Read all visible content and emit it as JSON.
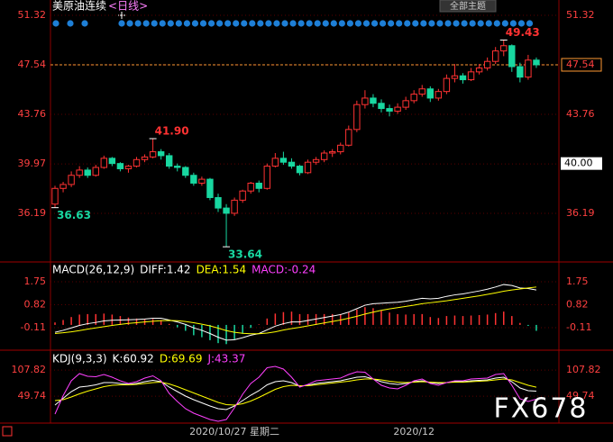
{
  "toolbar": {
    "button": "全部主题"
  },
  "watermark": "FX678",
  "chart_data": [
    {
      "type": "candlestick",
      "title": "美原油连续",
      "subtitle": "<日线>",
      "title_color": "#ffffff",
      "subtitle_color": "#ff80ff",
      "up_color": "#ff3232",
      "down_color": "#18d7a0",
      "grid": true,
      "ylim": [
        32.55,
        51.94
      ],
      "yticks": [
        36.19,
        39.97,
        43.76,
        47.54,
        51.32
      ],
      "categories": [
        null,
        null,
        null,
        null,
        null,
        null,
        null,
        null,
        null,
        null,
        null,
        null,
        null,
        null,
        null,
        null,
        null,
        null,
        null,
        null,
        null,
        null,
        "2020/10/27 星期二",
        null,
        null,
        null,
        null,
        null,
        null,
        null,
        null,
        null,
        null,
        null,
        null,
        null,
        null,
        null,
        null,
        null,
        null,
        null,
        null,
        null,
        "2020/12",
        null,
        null,
        null,
        null,
        null,
        null,
        null,
        null,
        null,
        null,
        null,
        null,
        null,
        null,
        null
      ],
      "open": [
        36.9,
        38.1,
        38.4,
        39.1,
        39.5,
        39.1,
        39.7,
        40.4,
        40.0,
        39.6,
        39.8,
        40.3,
        40.5,
        40.9,
        40.6,
        39.8,
        39.7,
        39.1,
        38.5,
        38.8,
        37.4,
        36.6,
        36.2,
        37.2,
        37.9,
        38.5,
        38.1,
        39.8,
        40.4,
        40.1,
        39.8,
        39.3,
        40.1,
        40.3,
        40.8,
        40.9,
        41.4,
        42.6,
        44.5,
        45.0,
        44.6,
        44.2,
        44.0,
        44.3,
        44.8,
        45.3,
        45.7,
        45.0,
        45.5,
        46.5,
        46.7,
        46.4,
        47.0,
        47.3,
        47.8,
        48.6,
        49.0,
        47.4,
        46.6,
        47.9
      ],
      "high": [
        38.3,
        38.6,
        39.4,
        39.8,
        39.7,
        39.9,
        40.6,
        40.5,
        40.1,
        39.9,
        40.5,
        40.7,
        41.9,
        41.1,
        40.8,
        40.0,
        39.8,
        39.3,
        39.0,
        38.9,
        37.7,
        36.9,
        37.4,
        38.0,
        38.6,
        38.7,
        40.0,
        40.8,
        40.9,
        40.4,
        39.9,
        40.3,
        40.5,
        41.0,
        41.1,
        41.6,
        42.9,
        44.8,
        45.6,
        45.3,
        44.9,
        44.5,
        44.6,
        45.1,
        45.6,
        46.0,
        45.9,
        45.7,
        46.8,
        47.6,
        46.9,
        47.3,
        47.6,
        48.1,
        48.9,
        49.43,
        49.1,
        47.7,
        48.3,
        48.1
      ],
      "low": [
        36.63,
        37.8,
        38.2,
        38.9,
        38.9,
        39.0,
        39.6,
        39.8,
        39.4,
        39.3,
        39.7,
        40.1,
        40.4,
        40.3,
        39.6,
        39.4,
        38.9,
        38.3,
        38.3,
        37.2,
        36.3,
        33.64,
        36.0,
        37.0,
        37.7,
        37.8,
        38.0,
        39.7,
        39.9,
        39.6,
        39.1,
        39.2,
        39.9,
        40.1,
        40.5,
        40.7,
        41.3,
        42.4,
        44.2,
        44.3,
        43.9,
        43.6,
        43.8,
        44.1,
        44.6,
        45.1,
        44.7,
        44.8,
        45.3,
        46.2,
        46.1,
        46.3,
        46.8,
        47.1,
        47.6,
        48.2,
        47.0,
        46.2,
        46.4,
        47.3
      ],
      "close": [
        38.1,
        38.4,
        39.1,
        39.5,
        39.1,
        39.7,
        40.4,
        40.0,
        39.6,
        39.8,
        40.3,
        40.5,
        40.9,
        40.6,
        39.8,
        39.7,
        39.1,
        38.5,
        38.8,
        37.4,
        36.6,
        36.2,
        37.2,
        37.9,
        38.5,
        38.1,
        39.8,
        40.4,
        40.1,
        39.8,
        39.3,
        40.1,
        40.3,
        40.8,
        40.9,
        41.4,
        42.6,
        44.5,
        45.0,
        44.6,
        44.2,
        44.0,
        44.3,
        44.8,
        45.3,
        45.7,
        45.0,
        45.5,
        46.5,
        46.7,
        46.4,
        47.0,
        47.3,
        47.8,
        48.6,
        49.0,
        47.4,
        46.6,
        47.9,
        47.54
      ],
      "annotations": [
        {
          "value": 41.9,
          "label": "41.90"
        },
        {
          "value": 49.43,
          "label": "49.43"
        },
        {
          "value": 36.63,
          "label": "36.63"
        },
        {
          "value": 33.64,
          "label": "33.64"
        }
      ],
      "last_price_color": "#ff9933",
      "cursor": {
        "value": 40,
        "label": "40.00"
      }
    },
    {
      "type": "macd",
      "header": [
        {
          "text": "MACD(26,12,9)",
          "color": "#ffffff"
        },
        {
          "text": "DIFF:1.42",
          "color": "#ffffff"
        },
        {
          "text": "DEA:1.54",
          "color": "#ffff00"
        },
        {
          "text": "MACD:-0.24",
          "color": "#ff40ff"
        }
      ],
      "ylim": [
        -0.88,
        2.52
      ],
      "yticks": [
        -0.11,
        0.82,
        1.75
      ],
      "histogram": {
        "up_color": "#ff3232",
        "down_color": "#18d7a0",
        "values": [
          0.1,
          0.2,
          0.32,
          0.42,
          0.44,
          0.44,
          0.46,
          0.42,
          0.36,
          0.3,
          0.26,
          0.24,
          0.24,
          0.2,
          0.04,
          -0.1,
          -0.24,
          -0.42,
          -0.5,
          -0.62,
          -0.74,
          -0.78,
          -0.6,
          -0.36,
          -0.12,
          0.02,
          0.26,
          0.46,
          0.52,
          0.54,
          0.44,
          0.44,
          0.44,
          0.44,
          0.44,
          0.44,
          0.5,
          0.62,
          0.72,
          0.68,
          0.58,
          0.5,
          0.44,
          0.42,
          0.44,
          0.44,
          0.32,
          0.28,
          0.36,
          0.38,
          0.36,
          0.38,
          0.4,
          0.42,
          0.48,
          0.54,
          0.36,
          0.08,
          -0.04,
          -0.24
        ]
      },
      "series": [
        {
          "color": "#ffffff",
          "values": [
            -0.3,
            -0.22,
            -0.12,
            -0.02,
            0.05,
            0.1,
            0.16,
            0.19,
            0.2,
            0.21,
            0.22,
            0.24,
            0.27,
            0.27,
            0.2,
            0.12,
            0.02,
            -0.12,
            -0.22,
            -0.35,
            -0.5,
            -0.62,
            -0.6,
            -0.52,
            -0.42,
            -0.35,
            -0.2,
            -0.05,
            0.05,
            0.12,
            0.12,
            0.18,
            0.24,
            0.3,
            0.36,
            0.42,
            0.52,
            0.66,
            0.8,
            0.86,
            0.88,
            0.9,
            0.92,
            0.96,
            1.02,
            1.08,
            1.06,
            1.08,
            1.16,
            1.22,
            1.26,
            1.32,
            1.38,
            1.45,
            1.54,
            1.64,
            1.6,
            1.5,
            1.48,
            1.42
          ]
        },
        {
          "color": "#ffff00",
          "values": [
            -0.35,
            -0.32,
            -0.28,
            -0.23,
            -0.17,
            -0.12,
            -0.07,
            -0.02,
            0.02,
            0.06,
            0.09,
            0.12,
            0.15,
            0.17,
            0.18,
            0.17,
            0.14,
            0.09,
            0.03,
            -0.04,
            -0.13,
            -0.23,
            -0.3,
            -0.34,
            -0.36,
            -0.36,
            -0.33,
            -0.28,
            -0.21,
            -0.15,
            -0.1,
            -0.04,
            0.02,
            0.08,
            0.14,
            0.2,
            0.27,
            0.35,
            0.44,
            0.52,
            0.59,
            0.65,
            0.7,
            0.75,
            0.8,
            0.86,
            0.9,
            0.94,
            0.98,
            1.03,
            1.08,
            1.13,
            1.18,
            1.24,
            1.3,
            1.37,
            1.42,
            1.46,
            1.5,
            1.54
          ]
        }
      ]
    },
    {
      "type": "kdj",
      "header": [
        {
          "text": "KDJ(9,3,3)",
          "color": "#ffffff"
        },
        {
          "text": "K:60.92",
          "color": "#ffffff"
        },
        {
          "text": "D:69.69",
          "color": "#ffff00"
        },
        {
          "text": "J:43.37",
          "color": "#ff40ff"
        }
      ],
      "ylim": [
        -10,
        140
      ],
      "yticks": [
        49.74,
        107.82
      ],
      "series": [
        {
          "color": "#ffffff",
          "values": [
            30,
            45,
            60,
            70,
            72,
            75,
            80,
            80,
            78,
            76,
            78,
            82,
            85,
            82,
            70,
            60,
            50,
            42,
            35,
            28,
            22,
            20,
            28,
            40,
            52,
            62,
            75,
            82,
            84,
            80,
            72,
            74,
            78,
            80,
            82,
            84,
            88,
            92,
            93,
            88,
            82,
            78,
            76,
            78,
            82,
            84,
            80,
            78,
            80,
            82,
            82,
            84,
            85,
            86,
            90,
            92,
            82,
            68,
            62,
            60.92
          ]
        },
        {
          "color": "#ffff00",
          "values": [
            40,
            42,
            48,
            55,
            61,
            66,
            71,
            74,
            75,
            75,
            76,
            78,
            80,
            81,
            77,
            71,
            64,
            57,
            50,
            43,
            36,
            31,
            30,
            33,
            39,
            47,
            56,
            65,
            71,
            74,
            73,
            73,
            75,
            77,
            79,
            81,
            83,
            86,
            88,
            88,
            86,
            83,
            81,
            80,
            81,
            82,
            81,
            80,
            80,
            81,
            81,
            82,
            83,
            84,
            86,
            88,
            86,
            80,
            74,
            69.69
          ]
        },
        {
          "color": "#ff40ff",
          "values": [
            10,
            51,
            84,
            100,
            94,
            93,
            98,
            92,
            84,
            78,
            82,
            90,
            95,
            84,
            56,
            38,
            22,
            12,
            5,
            -2,
            -6,
            -2,
            24,
            54,
            78,
            92,
            113,
            116,
            110,
            92,
            70,
            76,
            84,
            86,
            88,
            90,
            98,
            104,
            103,
            88,
            74,
            68,
            66,
            74,
            84,
            88,
            78,
            74,
            80,
            84,
            84,
            88,
            89,
            90,
            98,
            100,
            74,
            44,
            38,
            43.37
          ]
        }
      ]
    }
  ]
}
